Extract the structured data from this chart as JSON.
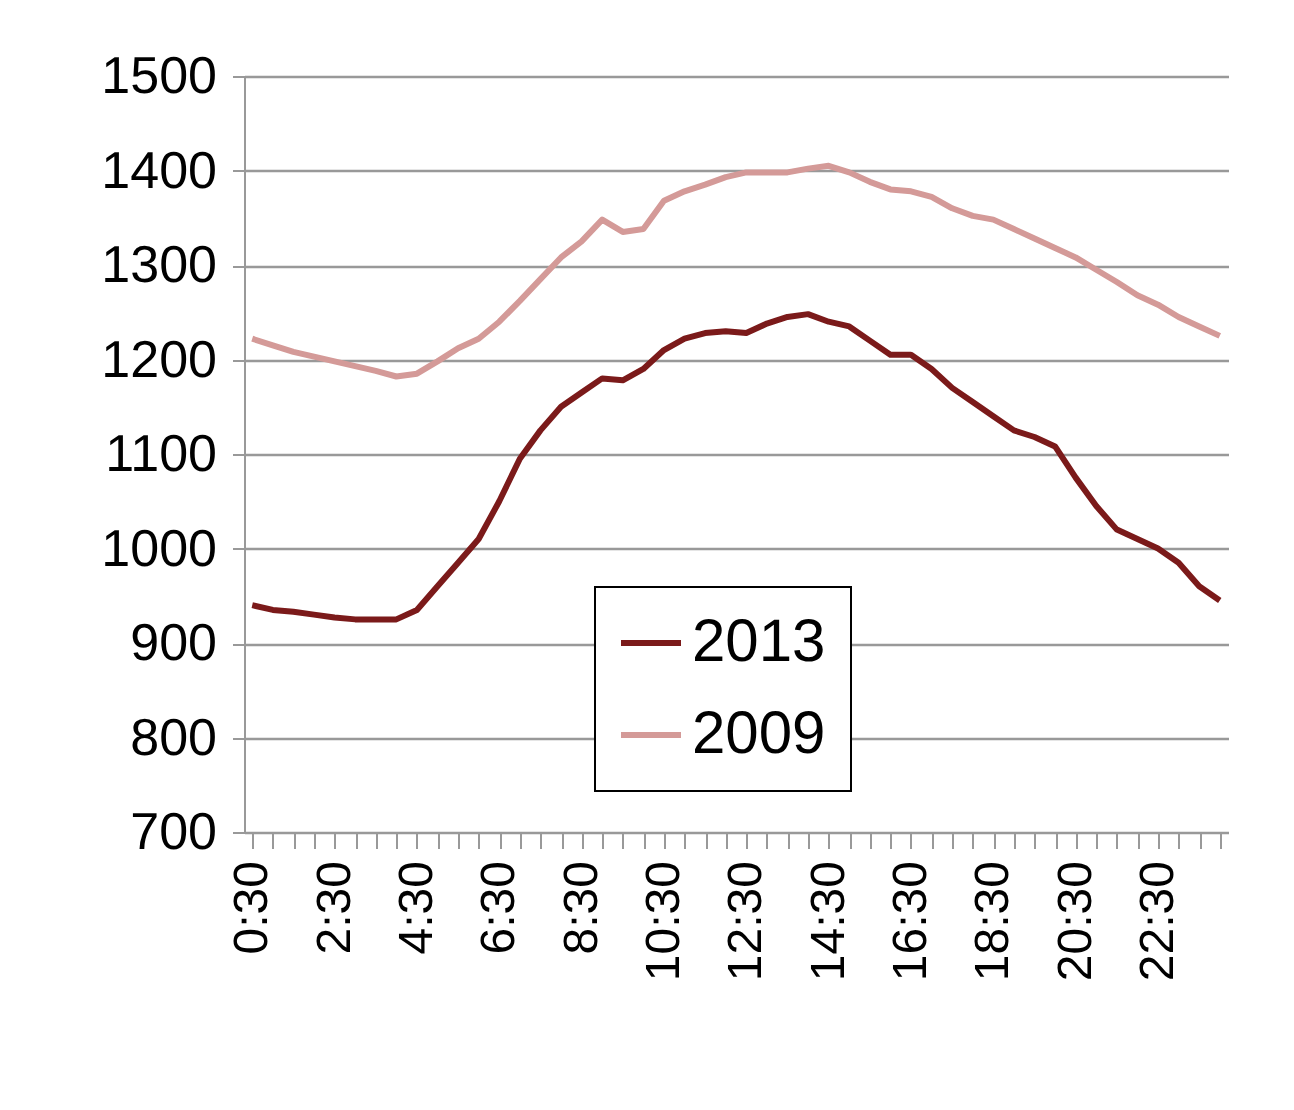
{
  "chart_data": {
    "type": "line",
    "categories": [
      "0:30",
      null,
      null,
      null,
      "2:30",
      null,
      null,
      null,
      "4:30",
      null,
      null,
      null,
      "6:30",
      null,
      null,
      null,
      "8:30",
      null,
      null,
      null,
      "10:30",
      null,
      null,
      null,
      "12:30",
      null,
      null,
      null,
      "14:30",
      null,
      null,
      null,
      "16:30",
      null,
      null,
      null,
      "18:30",
      null,
      null,
      null,
      "20:30",
      null,
      null,
      null,
      "22:30",
      null,
      null,
      null
    ],
    "series": [
      {
        "name": "2013",
        "color": "#7b1a1a",
        "values": [
          940,
          935,
          933,
          930,
          927,
          925,
          925,
          925,
          935,
          960,
          985,
          1010,
          1050,
          1095,
          1125,
          1150,
          1165,
          1180,
          1178,
          1190,
          1210,
          1222,
          1228,
          1230,
          1228,
          1238,
          1245,
          1248,
          1240,
          1235,
          1220,
          1205,
          1205,
          1190,
          1170,
          1155,
          1140,
          1125,
          1118,
          1108,
          1075,
          1045,
          1020,
          1010,
          1000,
          985,
          960,
          945
        ]
      },
      {
        "name": "2009",
        "color": "#d49a98",
        "values": [
          1222,
          1215,
          1208,
          1203,
          1198,
          1193,
          1188,
          1182,
          1185,
          1198,
          1212,
          1222,
          1240,
          1262,
          1285,
          1308,
          1325,
          1348,
          1335,
          1338,
          1368,
          1378,
          1385,
          1393,
          1398,
          1398,
          1398,
          1402,
          1405,
          1398,
          1388,
          1380,
          1378,
          1372,
          1360,
          1352,
          1348,
          1338,
          1328,
          1318,
          1308,
          1295,
          1282,
          1268,
          1258,
          1245,
          1235,
          1225
        ]
      }
    ],
    "ylim": [
      700,
      1500
    ],
    "yticks": [
      700,
      800,
      900,
      1000,
      1100,
      1200,
      1300,
      1400,
      1500
    ],
    "grid": "y",
    "legend": "bottom",
    "marker": "none",
    "line_style": "solid"
  }
}
